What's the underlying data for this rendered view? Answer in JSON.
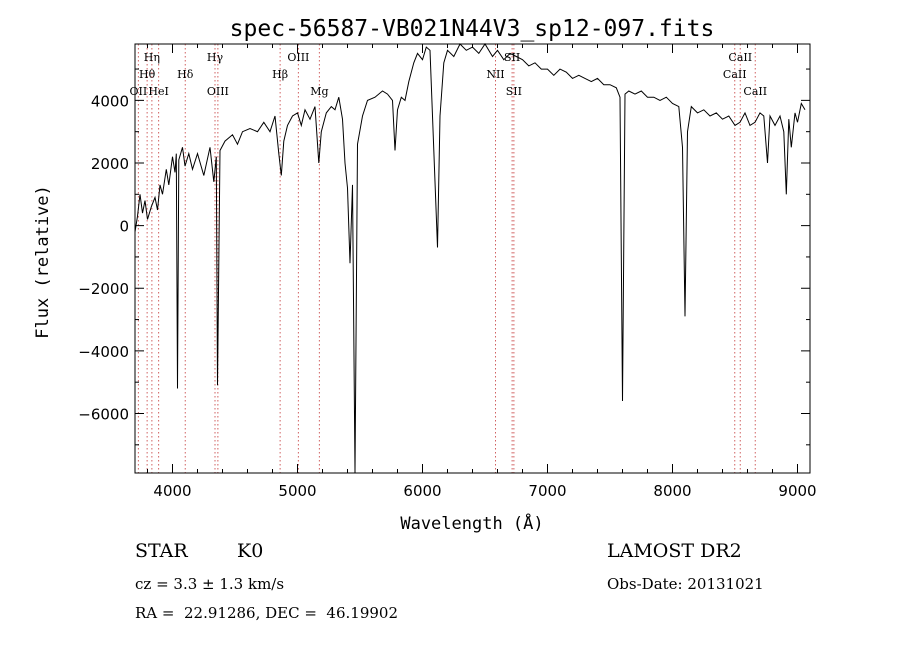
{
  "chart_data": {
    "type": "line",
    "title": "spec-56587-VB021N44V3_sp12-097.fits",
    "xlabel": "Wavelength (Å)",
    "ylabel": "Flux (relative)",
    "xlim": [
      3700,
      9100
    ],
    "ylim": [
      -7900,
      5800
    ],
    "xticks": [
      4000,
      5000,
      6000,
      7000,
      8000,
      9000
    ],
    "yticks": [
      -6000,
      -4000,
      -2000,
      0,
      2000,
      4000
    ],
    "grid": false,
    "series": [
      {
        "points": [
          [
            3700,
            -200
          ],
          [
            3720,
            300
          ],
          [
            3740,
            1000
          ],
          [
            3760,
            400
          ],
          [
            3780,
            800
          ],
          [
            3800,
            200
          ],
          [
            3830,
            600
          ],
          [
            3860,
            900
          ],
          [
            3880,
            500
          ],
          [
            3900,
            1300
          ],
          [
            3920,
            1000
          ],
          [
            3950,
            1800
          ],
          [
            3970,
            1300
          ],
          [
            4000,
            2200
          ],
          [
            4020,
            1700
          ],
          [
            4030,
            2300
          ],
          [
            4040,
            -5200
          ],
          [
            4050,
            2100
          ],
          [
            4080,
            2500
          ],
          [
            4100,
            1900
          ],
          [
            4130,
            2300
          ],
          [
            4160,
            1800
          ],
          [
            4200,
            2300
          ],
          [
            4250,
            1600
          ],
          [
            4300,
            2500
          ],
          [
            4330,
            1400
          ],
          [
            4350,
            2200
          ],
          [
            4360,
            -5100
          ],
          [
            4380,
            2400
          ],
          [
            4420,
            2700
          ],
          [
            4480,
            2900
          ],
          [
            4520,
            2600
          ],
          [
            4560,
            3000
          ],
          [
            4620,
            3100
          ],
          [
            4680,
            3000
          ],
          [
            4730,
            3300
          ],
          [
            4780,
            3000
          ],
          [
            4820,
            3500
          ],
          [
            4850,
            2300
          ],
          [
            4870,
            1600
          ],
          [
            4890,
            2700
          ],
          [
            4920,
            3200
          ],
          [
            4960,
            3500
          ],
          [
            5000,
            3600
          ],
          [
            5030,
            3200
          ],
          [
            5060,
            3700
          ],
          [
            5100,
            3400
          ],
          [
            5140,
            3800
          ],
          [
            5170,
            2000
          ],
          [
            5190,
            3000
          ],
          [
            5230,
            3600
          ],
          [
            5270,
            3800
          ],
          [
            5300,
            3700
          ],
          [
            5330,
            4100
          ],
          [
            5360,
            3400
          ],
          [
            5380,
            2000
          ],
          [
            5400,
            1200
          ],
          [
            5420,
            -1200
          ],
          [
            5440,
            1300
          ],
          [
            5460,
            -7900
          ],
          [
            5480,
            2600
          ],
          [
            5520,
            3500
          ],
          [
            5560,
            4000
          ],
          [
            5620,
            4100
          ],
          [
            5680,
            4300
          ],
          [
            5720,
            4200
          ],
          [
            5760,
            4000
          ],
          [
            5780,
            2400
          ],
          [
            5800,
            3700
          ],
          [
            5830,
            4100
          ],
          [
            5860,
            4000
          ],
          [
            5890,
            4600
          ],
          [
            5930,
            5200
          ],
          [
            5960,
            5500
          ],
          [
            6000,
            5300
          ],
          [
            6030,
            5700
          ],
          [
            6060,
            5600
          ],
          [
            6080,
            3500
          ],
          [
            6100,
            1400
          ],
          [
            6120,
            -700
          ],
          [
            6140,
            3500
          ],
          [
            6170,
            5200
          ],
          [
            6200,
            5600
          ],
          [
            6250,
            5400
          ],
          [
            6300,
            5800
          ],
          [
            6350,
            5600
          ],
          [
            6400,
            5700
          ],
          [
            6450,
            5500
          ],
          [
            6500,
            5800
          ],
          [
            6560,
            5400
          ],
          [
            6600,
            5600
          ],
          [
            6650,
            5300
          ],
          [
            6700,
            5500
          ],
          [
            6750,
            5400
          ],
          [
            6800,
            5300
          ],
          [
            6850,
            5100
          ],
          [
            6900,
            5200
          ],
          [
            6950,
            5000
          ],
          [
            7000,
            5000
          ],
          [
            7050,
            4800
          ],
          [
            7100,
            5000
          ],
          [
            7150,
            4900
          ],
          [
            7200,
            4700
          ],
          [
            7250,
            4800
          ],
          [
            7300,
            4700
          ],
          [
            7350,
            4600
          ],
          [
            7400,
            4700
          ],
          [
            7450,
            4500
          ],
          [
            7500,
            4500
          ],
          [
            7550,
            4400
          ],
          [
            7580,
            4100
          ],
          [
            7600,
            -5600
          ],
          [
            7620,
            4200
          ],
          [
            7650,
            4300
          ],
          [
            7700,
            4200
          ],
          [
            7750,
            4300
          ],
          [
            7800,
            4100
          ],
          [
            7850,
            4100
          ],
          [
            7900,
            4000
          ],
          [
            7950,
            4100
          ],
          [
            8000,
            3900
          ],
          [
            8050,
            3800
          ],
          [
            8080,
            2500
          ],
          [
            8100,
            -2900
          ],
          [
            8120,
            3000
          ],
          [
            8150,
            3800
          ],
          [
            8200,
            3600
          ],
          [
            8250,
            3700
          ],
          [
            8300,
            3500
          ],
          [
            8350,
            3600
          ],
          [
            8400,
            3400
          ],
          [
            8450,
            3500
          ],
          [
            8500,
            3200
          ],
          [
            8540,
            3300
          ],
          [
            8580,
            3600
          ],
          [
            8620,
            3200
          ],
          [
            8660,
            3300
          ],
          [
            8700,
            3600
          ],
          [
            8730,
            3500
          ],
          [
            8760,
            2000
          ],
          [
            8780,
            3500
          ],
          [
            8820,
            3200
          ],
          [
            8860,
            3500
          ],
          [
            8890,
            3000
          ],
          [
            8910,
            1000
          ],
          [
            8930,
            3400
          ],
          [
            8950,
            2500
          ],
          [
            8980,
            3600
          ],
          [
            9000,
            3300
          ],
          [
            9030,
            3900
          ],
          [
            9060,
            3700
          ]
        ]
      }
    ],
    "lines": [
      {
        "label": "Hη",
        "x": 3835,
        "row": 0
      },
      {
        "label": "Hθ",
        "x": 3797,
        "row": 1
      },
      {
        "label": "OII",
        "x": 3727,
        "row": 2
      },
      {
        "label": "HeI",
        "x": 3889,
        "row": 2
      },
      {
        "label": "Hδ",
        "x": 4102,
        "row": 1
      },
      {
        "label": "Hγ",
        "x": 4340,
        "row": 0
      },
      {
        "label": "OIII",
        "x": 4363,
        "row": 2
      },
      {
        "label": "Hβ",
        "x": 4861,
        "row": 1
      },
      {
        "label": "OIII",
        "x": 5007,
        "row": 0
      },
      {
        "label": "Mg",
        "x": 5175,
        "row": 2
      },
      {
        "label": "SII",
        "x": 6717,
        "row": 0
      },
      {
        "label": "NII",
        "x": 6584,
        "row": 1
      },
      {
        "label": "SII",
        "x": 6731,
        "row": 2
      },
      {
        "label": "CaII",
        "x": 8542,
        "row": 0
      },
      {
        "label": "CaII",
        "x": 8498,
        "row": 1
      },
      {
        "label": "CaII",
        "x": 8662,
        "row": 2
      }
    ]
  },
  "info": {
    "object_class": "STAR",
    "subclass": "K0",
    "survey": "LAMOST DR2",
    "redshift": "cz = 3.3 ± 1.3 km/s",
    "obs_date": "Obs-Date: 20131021",
    "coords": "RA =  22.91286, DEC =  46.19902"
  },
  "colors": {
    "spectrum": "#000000",
    "line_markers": "#d06060"
  }
}
